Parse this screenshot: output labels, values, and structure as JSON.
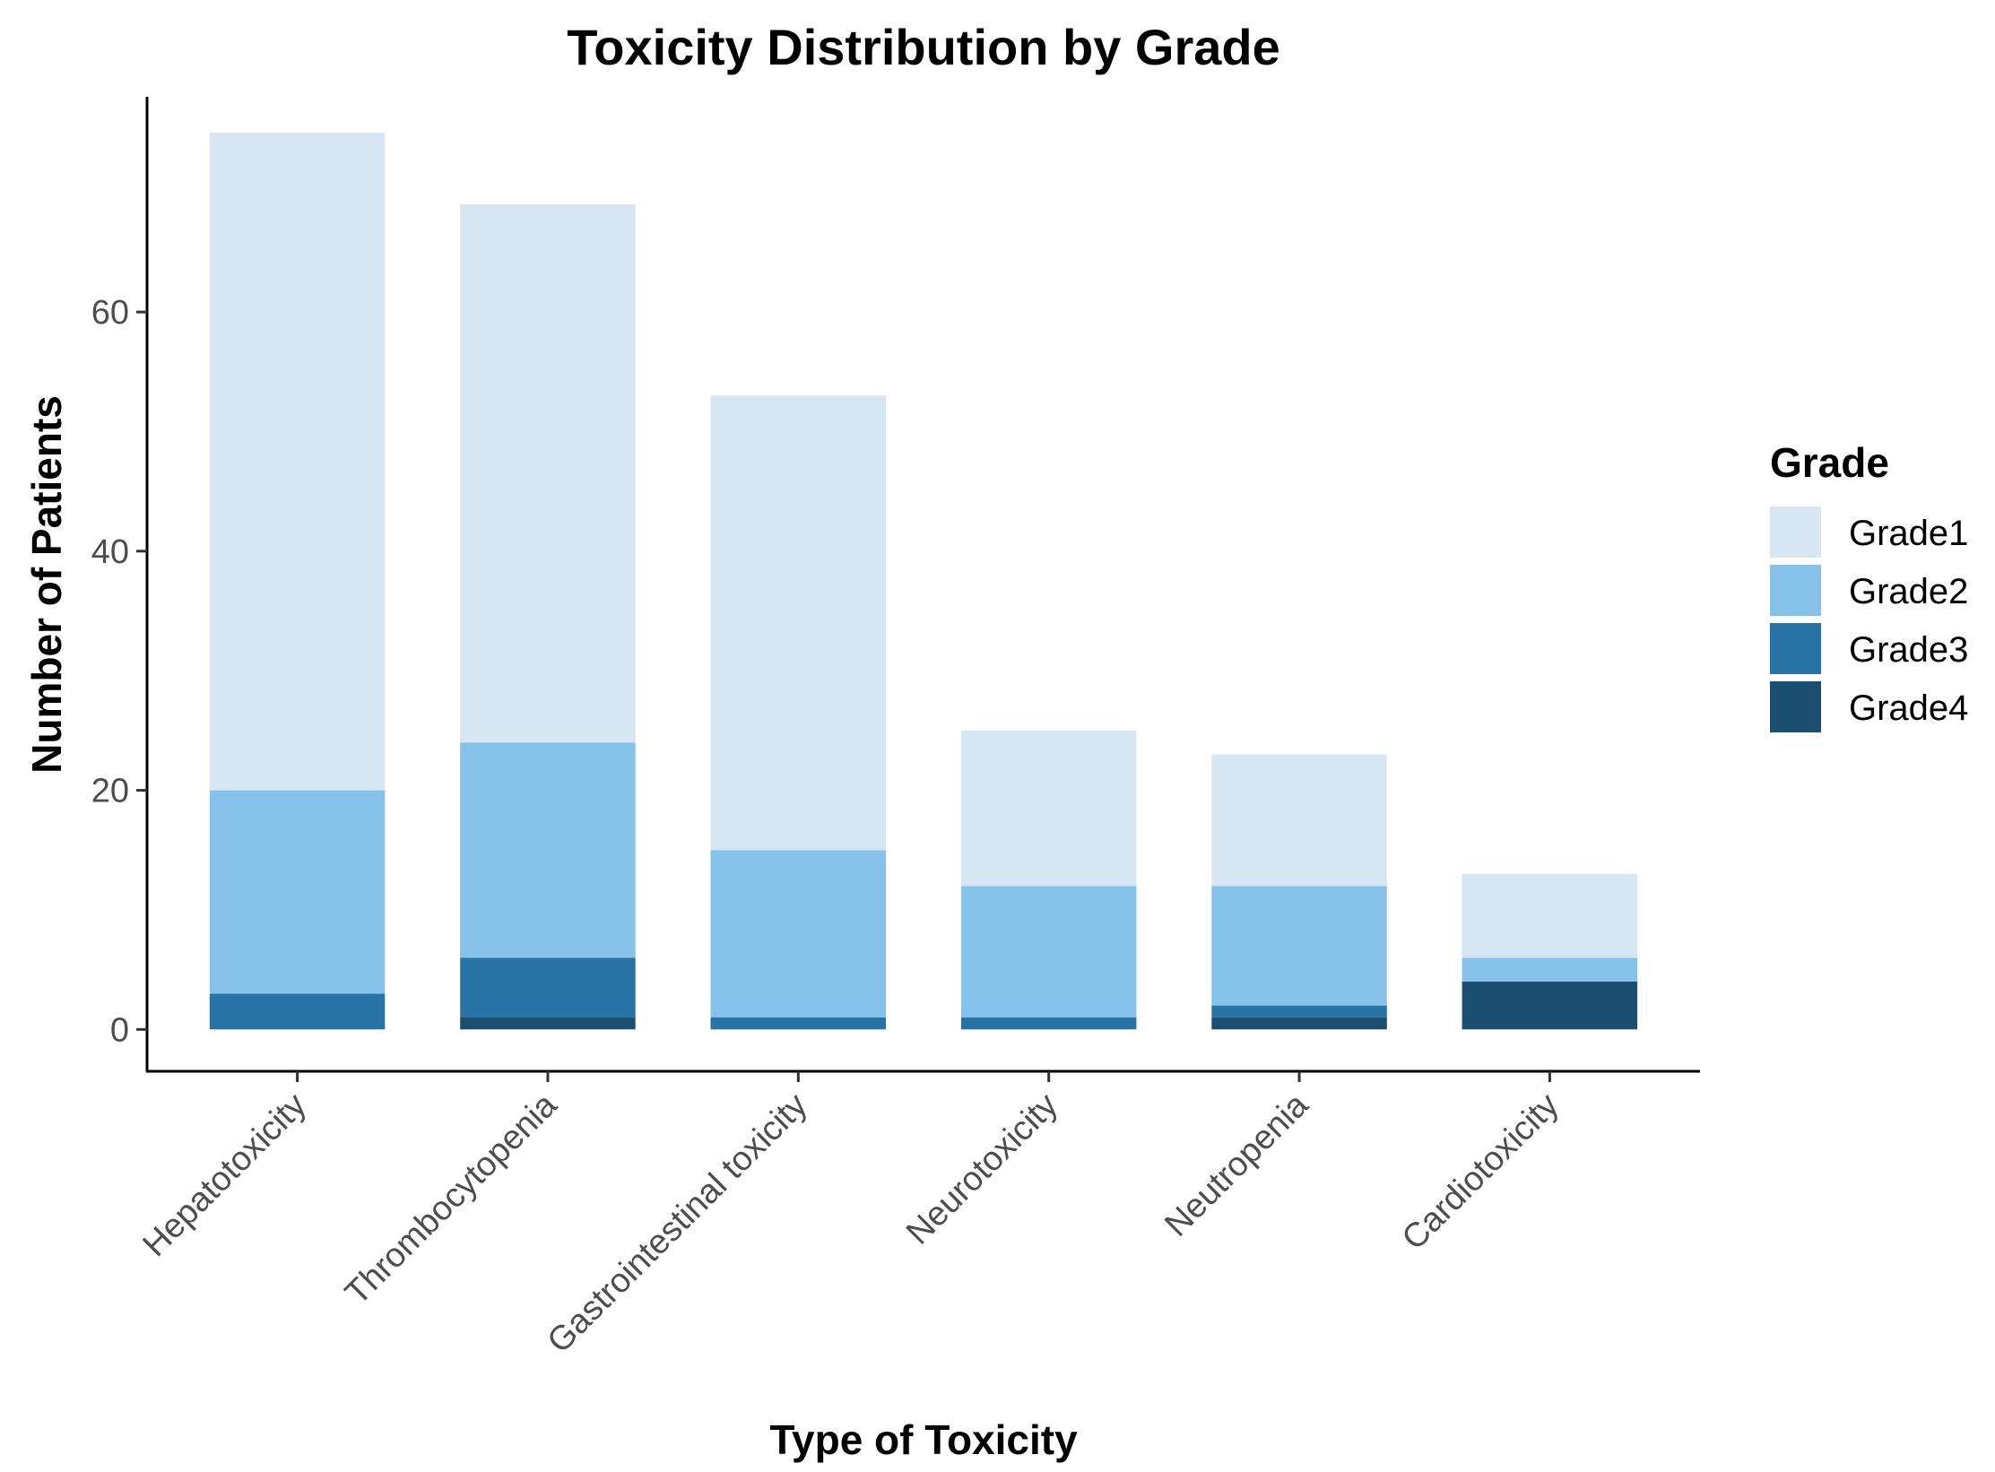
{
  "chart_data": {
    "type": "bar",
    "stacked": true,
    "title": "Toxicity Distribution by Grade",
    "xlabel": "Type of Toxicity",
    "ylabel": "Number of Patients",
    "ylim": [
      -3.5,
      78
    ],
    "yticks": [
      0,
      20,
      40,
      60
    ],
    "categories": [
      "Hepatotoxicity",
      "Thrombocytopenia",
      "Gastrointestinal toxicity",
      "Neurotoxicity",
      "Neutropenia",
      "Cardiotoxicity"
    ],
    "series": [
      {
        "name": "Grade4",
        "color": "#1b4f72",
        "values": [
          0,
          1,
          0,
          0,
          1,
          4
        ]
      },
      {
        "name": "Grade3",
        "color": "#2874a6",
        "values": [
          3,
          5,
          1,
          1,
          1,
          0
        ]
      },
      {
        "name": "Grade2",
        "color": "#85c1e9",
        "values": [
          17,
          18,
          14,
          11,
          10,
          2
        ]
      },
      {
        "name": "Grade1",
        "color": "#d6e6f2",
        "values": [
          55,
          45,
          38,
          13,
          11,
          7
        ]
      }
    ],
    "legend": {
      "title": "Grade",
      "position": "right",
      "entries": [
        "Grade1",
        "Grade2",
        "Grade3",
        "Grade4"
      ]
    }
  }
}
